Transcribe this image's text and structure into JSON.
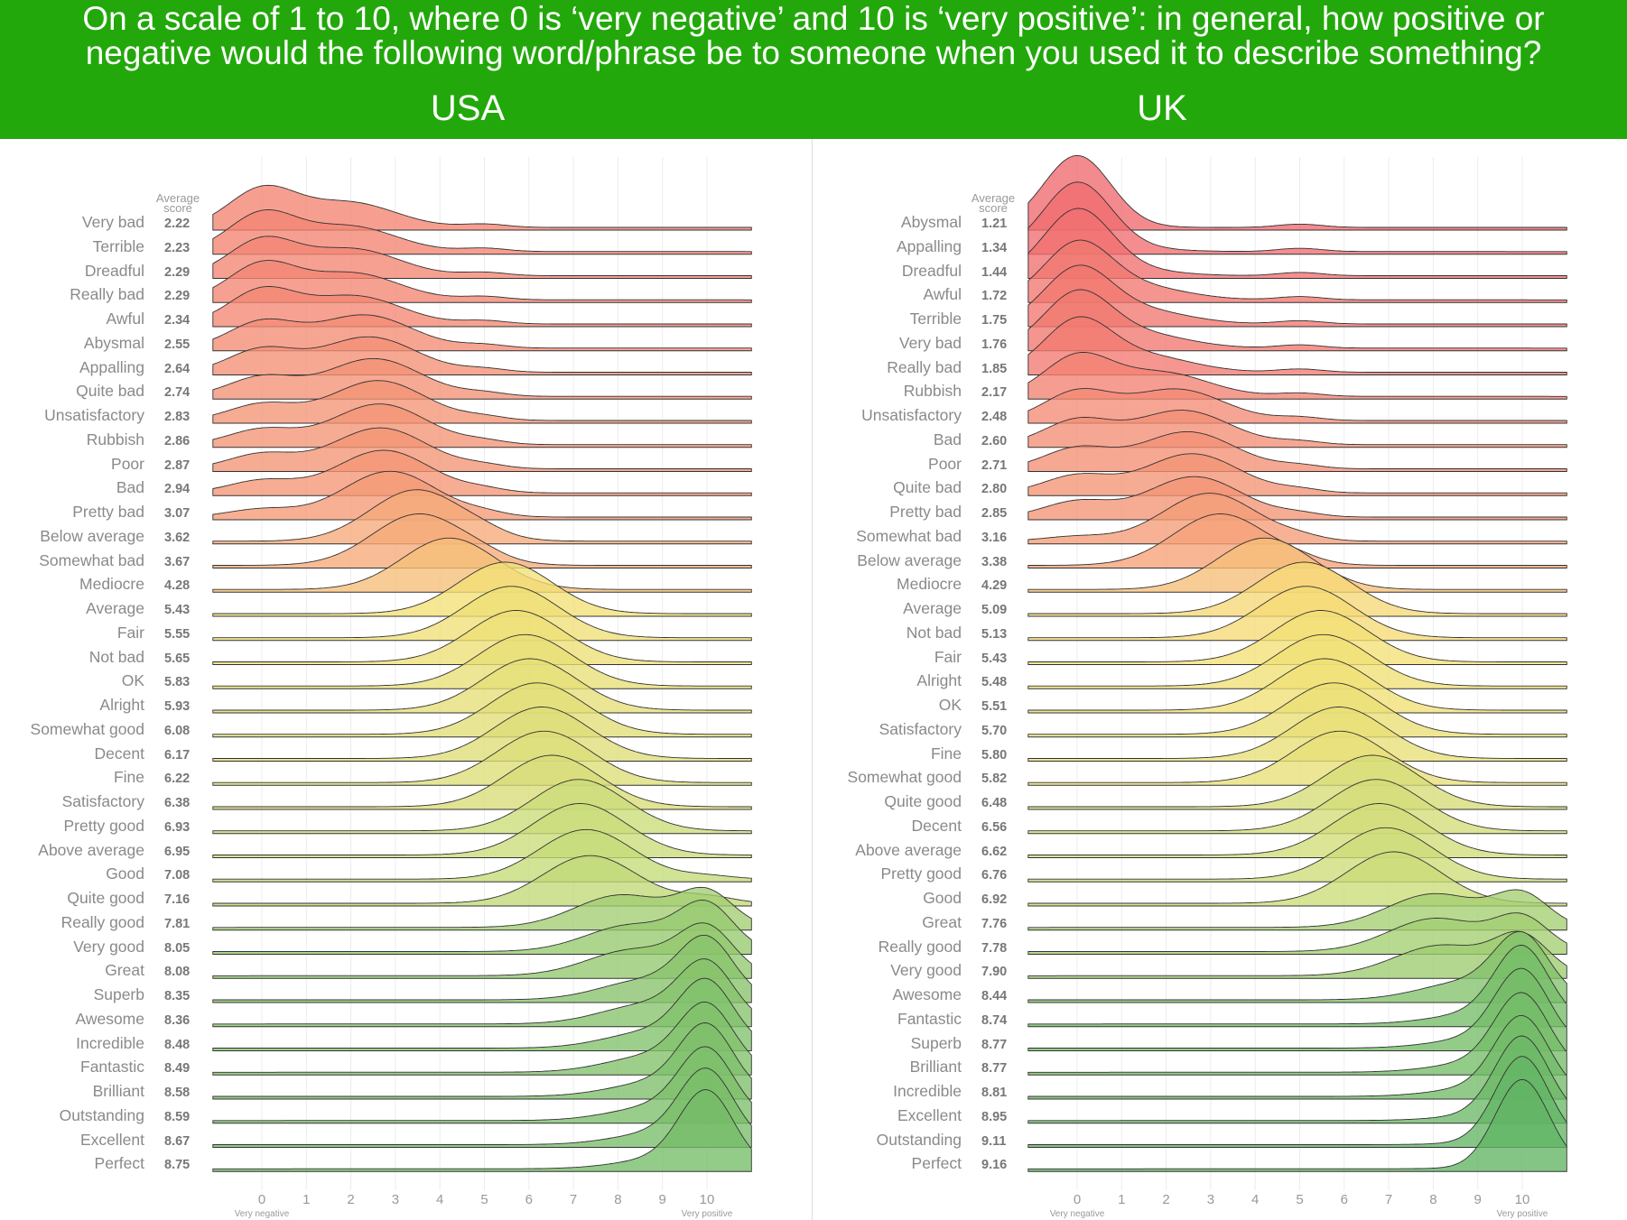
{
  "header": {
    "title_line1": "On a scale of 1 to 10, where 0 is ‘very negative’ and 10 is ‘very positive’: in general, how positive or",
    "title_line2": "negative would the following word/phrase be to someone when you used it to describe something?",
    "background": "#22a80a"
  },
  "chart_data": [
    {
      "type": "area",
      "subtype": "ridgeline",
      "title": "USA",
      "score_header": "Average score",
      "x_ticks": [
        0,
        1,
        2,
        3,
        4,
        5,
        6,
        7,
        8,
        9,
        10
      ],
      "x_min_label": "Very negative",
      "x_max_label": "Very positive",
      "xlim": [
        0,
        10
      ],
      "grid": true,
      "items": [
        {
          "label": "Very bad",
          "avg": "2.22"
        },
        {
          "label": "Terrible",
          "avg": "2.23"
        },
        {
          "label": "Dreadful",
          "avg": "2.29"
        },
        {
          "label": "Really bad",
          "avg": "2.29"
        },
        {
          "label": "Awful",
          "avg": "2.34"
        },
        {
          "label": "Abysmal",
          "avg": "2.55"
        },
        {
          "label": "Appalling",
          "avg": "2.64"
        },
        {
          "label": "Quite bad",
          "avg": "2.74"
        },
        {
          "label": "Unsatisfactory",
          "avg": "2.83"
        },
        {
          "label": "Rubbish",
          "avg": "2.86"
        },
        {
          "label": "Poor",
          "avg": "2.87"
        },
        {
          "label": "Bad",
          "avg": "2.94"
        },
        {
          "label": "Pretty bad",
          "avg": "3.07"
        },
        {
          "label": "Below average",
          "avg": "3.62"
        },
        {
          "label": "Somewhat bad",
          "avg": "3.67"
        },
        {
          "label": "Mediocre",
          "avg": "4.28"
        },
        {
          "label": "Average",
          "avg": "5.43"
        },
        {
          "label": "Fair",
          "avg": "5.55"
        },
        {
          "label": "Not bad",
          "avg": "5.65"
        },
        {
          "label": "OK",
          "avg": "5.83"
        },
        {
          "label": "Alright",
          "avg": "5.93"
        },
        {
          "label": "Somewhat good",
          "avg": "6.08"
        },
        {
          "label": "Decent",
          "avg": "6.17"
        },
        {
          "label": "Fine",
          "avg": "6.22"
        },
        {
          "label": "Satisfactory",
          "avg": "6.38"
        },
        {
          "label": "Pretty good",
          "avg": "6.93"
        },
        {
          "label": "Above average",
          "avg": "6.95"
        },
        {
          "label": "Good",
          "avg": "7.08"
        },
        {
          "label": "Quite good",
          "avg": "7.16"
        },
        {
          "label": "Really good",
          "avg": "7.81"
        },
        {
          "label": "Very good",
          "avg": "8.05"
        },
        {
          "label": "Great",
          "avg": "8.08"
        },
        {
          "label": "Superb",
          "avg": "8.35"
        },
        {
          "label": "Awesome",
          "avg": "8.36"
        },
        {
          "label": "Incredible",
          "avg": "8.48"
        },
        {
          "label": "Fantastic",
          "avg": "8.49"
        },
        {
          "label": "Brilliant",
          "avg": "8.58"
        },
        {
          "label": "Outstanding",
          "avg": "8.59"
        },
        {
          "label": "Excellent",
          "avg": "8.67"
        },
        {
          "label": "Perfect",
          "avg": "8.75"
        }
      ]
    },
    {
      "type": "area",
      "subtype": "ridgeline",
      "title": "UK",
      "score_header": "Average score",
      "x_ticks": [
        0,
        1,
        2,
        3,
        4,
        5,
        6,
        7,
        8,
        9,
        10
      ],
      "x_min_label": "Very negative",
      "x_max_label": "Very positive",
      "xlim": [
        0,
        10
      ],
      "grid": true,
      "items": [
        {
          "label": "Abysmal",
          "avg": "1.21"
        },
        {
          "label": "Appalling",
          "avg": "1.34"
        },
        {
          "label": "Dreadful",
          "avg": "1.44"
        },
        {
          "label": "Awful",
          "avg": "1.72"
        },
        {
          "label": "Terrible",
          "avg": "1.75"
        },
        {
          "label": "Very bad",
          "avg": "1.76"
        },
        {
          "label": "Really bad",
          "avg": "1.85"
        },
        {
          "label": "Rubbish",
          "avg": "2.17"
        },
        {
          "label": "Unsatisfactory",
          "avg": "2.48"
        },
        {
          "label": "Bad",
          "avg": "2.60"
        },
        {
          "label": "Poor",
          "avg": "2.71"
        },
        {
          "label": "Quite bad",
          "avg": "2.80"
        },
        {
          "label": "Pretty bad",
          "avg": "2.85"
        },
        {
          "label": "Somewhat bad",
          "avg": "3.16"
        },
        {
          "label": "Below average",
          "avg": "3.38"
        },
        {
          "label": "Mediocre",
          "avg": "4.29"
        },
        {
          "label": "Average",
          "avg": "5.09"
        },
        {
          "label": "Not bad",
          "avg": "5.13"
        },
        {
          "label": "Fair",
          "avg": "5.43"
        },
        {
          "label": "Alright",
          "avg": "5.48"
        },
        {
          "label": "OK",
          "avg": "5.51"
        },
        {
          "label": "Satisfactory",
          "avg": "5.70"
        },
        {
          "label": "Fine",
          "avg": "5.80"
        },
        {
          "label": "Somewhat good",
          "avg": "5.82"
        },
        {
          "label": "Quite good",
          "avg": "6.48"
        },
        {
          "label": "Decent",
          "avg": "6.56"
        },
        {
          "label": "Above average",
          "avg": "6.62"
        },
        {
          "label": "Pretty good",
          "avg": "6.76"
        },
        {
          "label": "Good",
          "avg": "6.92"
        },
        {
          "label": "Great",
          "avg": "7.76"
        },
        {
          "label": "Really good",
          "avg": "7.78"
        },
        {
          "label": "Very good",
          "avg": "7.90"
        },
        {
          "label": "Awesome",
          "avg": "8.44"
        },
        {
          "label": "Fantastic",
          "avg": "8.74"
        },
        {
          "label": "Superb",
          "avg": "8.77"
        },
        {
          "label": "Brilliant",
          "avg": "8.77"
        },
        {
          "label": "Incredible",
          "avg": "8.81"
        },
        {
          "label": "Excellent",
          "avg": "8.95"
        },
        {
          "label": "Outstanding",
          "avg": "9.11"
        },
        {
          "label": "Perfect",
          "avg": "9.16"
        }
      ]
    }
  ]
}
